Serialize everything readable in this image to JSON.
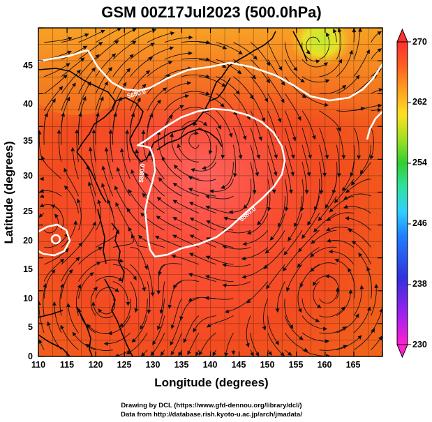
{
  "title": "GSM 00Z17Jul2023 (500.0hPa)",
  "xlabel": "Longitude (degrees)",
  "ylabel": "Latitude  (degrees)",
  "x_ticks": [
    "110",
    "115",
    "120",
    "125",
    "130",
    "135",
    "140",
    "145",
    "150",
    "155",
    "160",
    "165"
  ],
  "y_ticks": [
    "0",
    "5",
    "10",
    "15",
    "20",
    "25",
    "30",
    "35",
    "40",
    "45"
  ],
  "colorbar": {
    "ticks": [
      "230",
      "238",
      "246",
      "254",
      "262",
      "270"
    ],
    "colors": [
      "#ff20d0",
      "#8030ff",
      "#3030e0",
      "#2080ff",
      "#30d0ff",
      "#30e0a0",
      "#30d030",
      "#a0e020",
      "#ffe020",
      "#ffa020",
      "#ff6020",
      "#ff3030"
    ]
  },
  "contour_label": "5880.0",
  "credits": {
    "line1": "Drawing by DCL (https://www.gfd-dennou.org/library/dcl/)",
    "line2": "Data from http://database.rish.kyoto-u.ac.jp/arch/jmadata/"
  },
  "chart_data": {
    "type": "heatmap",
    "title": "GSM 00Z17Jul2023 (500.0hPa)",
    "xlabel": "Longitude (degrees)",
    "ylabel": "Latitude  (degrees)",
    "xlim": [
      110,
      170
    ],
    "ylim": [
      0,
      50
    ],
    "colorbar_range": [
      230,
      270
    ],
    "contour_value": 5880.0
  }
}
